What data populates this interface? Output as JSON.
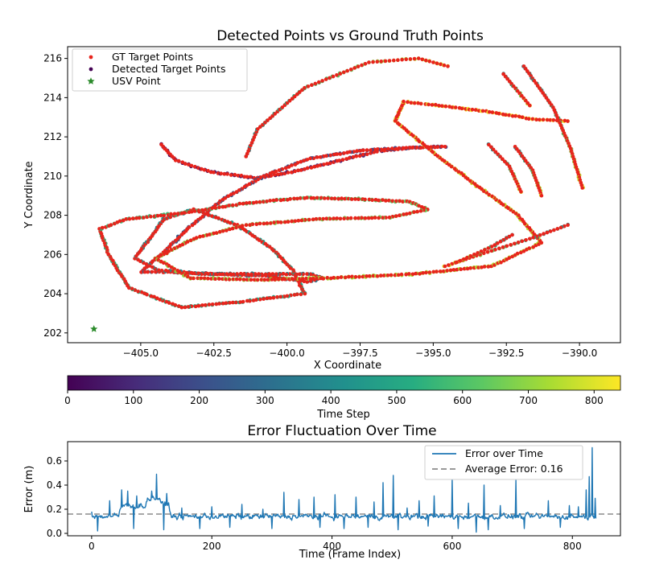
{
  "chart_data": [
    {
      "type": "scatter",
      "title": "Detected Points vs Ground Truth Points",
      "xlabel": "X Coordinate",
      "ylabel": "Y Coordinate",
      "xlim": [
        -407.5,
        -388.6
      ],
      "ylim": [
        201.5,
        216.6
      ],
      "xticks": [
        -405.0,
        -402.5,
        -400.0,
        -397.5,
        -395.0,
        -392.5,
        -390.0
      ],
      "xtick_labels": [
        "−405.0",
        "−402.5",
        "−400.0",
        "−397.5",
        "−395.0",
        "−392.5",
        "−390.0"
      ],
      "yticks": [
        202,
        204,
        206,
        208,
        210,
        212,
        214,
        216
      ],
      "ytick_labels": [
        "202",
        "204",
        "206",
        "208",
        "210",
        "212",
        "214",
        "216"
      ],
      "legend_position": "top-left",
      "legend": [
        {
          "label": "GT Target Points",
          "color": "#e8241c",
          "marker": "dot"
        },
        {
          "label": "Detected Target Points",
          "color": "#440154",
          "marker": "dot"
        },
        {
          "label": "USV Point",
          "color": "#2a8a2a",
          "marker": "star"
        }
      ],
      "usv_point": {
        "x": -406.6,
        "y": 202.2
      },
      "colormap": "viridis",
      "trajectory": [
        {
          "t": 0,
          "x": -404.3,
          "y": 211.6
        },
        {
          "t": 20,
          "x": -403.8,
          "y": 210.8
        },
        {
          "t": 40,
          "x": -402.6,
          "y": 210.2
        },
        {
          "t": 60,
          "x": -401.0,
          "y": 209.9
        },
        {
          "t": 80,
          "x": -399.5,
          "y": 210.3
        },
        {
          "t": 100,
          "x": -398.2,
          "y": 210.8
        },
        {
          "t": 120,
          "x": -396.8,
          "y": 211.3
        },
        {
          "t": 140,
          "x": -395.6,
          "y": 211.45
        },
        {
          "t": 160,
          "x": -394.6,
          "y": 211.5
        },
        {
          "t": 175,
          "x": -395.8,
          "y": 211.45
        },
        {
          "t": 190,
          "x": -397.5,
          "y": 211.3
        },
        {
          "t": 205,
          "x": -399.2,
          "y": 210.9
        },
        {
          "t": 220,
          "x": -400.8,
          "y": 210.0
        },
        {
          "t": 235,
          "x": -402.2,
          "y": 208.8
        },
        {
          "t": 250,
          "x": -403.4,
          "y": 207.3
        },
        {
          "t": 265,
          "x": -404.3,
          "y": 206.0
        },
        {
          "t": 280,
          "x": -405.0,
          "y": 205.1
        },
        {
          "t": 290,
          "x": -404.1,
          "y": 205.1
        },
        {
          "t": 300,
          "x": -402.5,
          "y": 205.0
        },
        {
          "t": 315,
          "x": -400.6,
          "y": 204.9
        },
        {
          "t": 330,
          "x": -399.3,
          "y": 204.6
        },
        {
          "t": 345,
          "x": -398.8,
          "y": 204.8
        },
        {
          "t": 360,
          "x": -399.2,
          "y": 205.0
        },
        {
          "t": 375,
          "x": -400.6,
          "y": 205.0
        },
        {
          "t": 390,
          "x": -402.8,
          "y": 205.0
        },
        {
          "t": 400,
          "x": -404.4,
          "y": 205.2
        },
        {
          "t": 410,
          "x": -405.2,
          "y": 205.8
        },
        {
          "t": 420,
          "x": -404.2,
          "y": 207.8
        },
        {
          "t": 432,
          "x": -403.2,
          "y": 208.3
        },
        {
          "t": 445,
          "x": -401.7,
          "y": 207.5
        },
        {
          "t": 460,
          "x": -400.5,
          "y": 206.3
        },
        {
          "t": 475,
          "x": -399.8,
          "y": 205.2
        },
        {
          "t": 488,
          "x": -399.4,
          "y": 204.0
        },
        {
          "t": 500,
          "x": -401.5,
          "y": 203.6
        },
        {
          "t": 515,
          "x": -403.6,
          "y": 203.3
        },
        {
          "t": 530,
          "x": -405.4,
          "y": 204.3
        },
        {
          "t": 542,
          "x": -406.1,
          "y": 206.0
        },
        {
          "t": 552,
          "x": -406.4,
          "y": 207.3
        },
        {
          "t": 562,
          "x": -405.5,
          "y": 207.8
        },
        {
          "t": 575,
          "x": -403.6,
          "y": 208.1
        },
        {
          "t": 590,
          "x": -401.5,
          "y": 208.6
        },
        {
          "t": 605,
          "x": -399.3,
          "y": 208.9
        },
        {
          "t": 620,
          "x": -397.2,
          "y": 208.8
        },
        {
          "t": 635,
          "x": -395.8,
          "y": 208.7
        },
        {
          "t": 645,
          "x": -395.2,
          "y": 208.3
        },
        {
          "t": 655,
          "x": -396.5,
          "y": 207.9
        },
        {
          "t": 665,
          "x": -399.0,
          "y": 207.8
        },
        {
          "t": 675,
          "x": -401.4,
          "y": 207.5
        },
        {
          "t": 685,
          "x": -403.2,
          "y": 206.8
        },
        {
          "t": 695,
          "x": -404.5,
          "y": 205.8
        },
        {
          "t": 702,
          "x": -403.3,
          "y": 204.8
        },
        {
          "t": 710,
          "x": -401.0,
          "y": 204.7
        },
        {
          "t": 720,
          "x": -398.5,
          "y": 204.8
        },
        {
          "t": 730,
          "x": -395.7,
          "y": 205.0
        },
        {
          "t": 740,
          "x": -393.0,
          "y": 205.4
        },
        {
          "t": 750,
          "x": -391.3,
          "y": 206.6
        },
        {
          "t": 760,
          "x": -392.1,
          "y": 208.0
        },
        {
          "t": 770,
          "x": -393.5,
          "y": 209.5
        },
        {
          "t": 780,
          "x": -395.0,
          "y": 211.2
        },
        {
          "t": 790,
          "x": -396.3,
          "y": 212.8
        },
        {
          "t": 800,
          "x": -396.0,
          "y": 213.8
        },
        {
          "t": 812,
          "x": -394.8,
          "y": 213.6
        },
        {
          "t": 822,
          "x": -393.2,
          "y": 213.3
        },
        {
          "t": 832,
          "x": -391.6,
          "y": 212.9
        },
        {
          "t": 840,
          "x": -390.4,
          "y": 212.8
        }
      ],
      "fragments": [
        [
          {
            "x": -401.4,
            "y": 211.0
          },
          {
            "x": -401.0,
            "y": 212.4
          },
          {
            "x": -399.4,
            "y": 214.5
          },
          {
            "x": -397.2,
            "y": 215.8
          },
          {
            "x": -395.5,
            "y": 216.0
          },
          {
            "x": -394.5,
            "y": 215.6
          }
        ],
        [
          {
            "x": -391.9,
            "y": 215.6
          },
          {
            "x": -390.9,
            "y": 213.5
          },
          {
            "x": -390.3,
            "y": 211.4
          },
          {
            "x": -389.9,
            "y": 209.4
          }
        ],
        [
          {
            "x": -392.6,
            "y": 215.2
          },
          {
            "x": -391.7,
            "y": 213.6
          }
        ],
        [
          {
            "x": -393.1,
            "y": 211.6
          },
          {
            "x": -392.4,
            "y": 210.5
          },
          {
            "x": -392.0,
            "y": 209.2
          }
        ],
        [
          {
            "x": -392.2,
            "y": 211.5
          },
          {
            "x": -391.6,
            "y": 210.3
          },
          {
            "x": -391.3,
            "y": 209.0
          }
        ],
        [
          {
            "x": -390.4,
            "y": 207.5
          },
          {
            "x": -391.7,
            "y": 206.8
          },
          {
            "x": -393.4,
            "y": 206.0
          },
          {
            "x": -394.6,
            "y": 205.4
          }
        ],
        [
          {
            "x": -392.3,
            "y": 207.0
          },
          {
            "x": -393.0,
            "y": 206.4
          },
          {
            "x": -394.2,
            "y": 205.6
          }
        ]
      ]
    },
    {
      "type": "colorbar",
      "label": "Time Step",
      "range": [
        0,
        840
      ],
      "ticks": [
        0,
        100,
        200,
        300,
        400,
        500,
        600,
        700,
        800
      ],
      "tick_labels": [
        "0",
        "100",
        "200",
        "300",
        "400",
        "500",
        "600",
        "700",
        "800"
      ]
    },
    {
      "type": "line",
      "title": "Error Fluctuation Over Time",
      "xlabel": "Time (Frame Index)",
      "ylabel": "Error (m)",
      "xlim": [
        -40,
        880
      ],
      "ylim": [
        -0.02,
        0.76
      ],
      "xticks": [
        0,
        200,
        400,
        600,
        800
      ],
      "xtick_labels": [
        "0",
        "200",
        "400",
        "600",
        "800"
      ],
      "yticks": [
        0.0,
        0.2,
        0.4,
        0.6
      ],
      "ytick_labels": [
        "0.0",
        "0.2",
        "0.4",
        "0.6"
      ],
      "legend_position": "top-right",
      "series": [
        {
          "name": "Error over Time",
          "color": "#1f77b4",
          "style": "solid"
        },
        {
          "name": "Average Error: 0.16",
          "color": "#8c8c8c",
          "style": "dashed",
          "value": 0.16
        }
      ],
      "frames": 840,
      "base_level": 0.14,
      "peaks": [
        {
          "x": 0,
          "y": 0.18
        },
        {
          "x": 30,
          "y": 0.27
        },
        {
          "x": 50,
          "y": 0.36
        },
        {
          "x": 60,
          "y": 0.35
        },
        {
          "x": 75,
          "y": 0.31
        },
        {
          "x": 100,
          "y": 0.35
        },
        {
          "x": 108,
          "y": 0.49
        },
        {
          "x": 125,
          "y": 0.33
        },
        {
          "x": 150,
          "y": 0.21
        },
        {
          "x": 200,
          "y": 0.22
        },
        {
          "x": 250,
          "y": 0.24
        },
        {
          "x": 285,
          "y": 0.2
        },
        {
          "x": 320,
          "y": 0.34
        },
        {
          "x": 345,
          "y": 0.28
        },
        {
          "x": 370,
          "y": 0.3
        },
        {
          "x": 405,
          "y": 0.32
        },
        {
          "x": 440,
          "y": 0.3
        },
        {
          "x": 470,
          "y": 0.26
        },
        {
          "x": 485,
          "y": 0.42
        },
        {
          "x": 502,
          "y": 0.48
        },
        {
          "x": 525,
          "y": 0.21
        },
        {
          "x": 545,
          "y": 0.27
        },
        {
          "x": 570,
          "y": 0.31
        },
        {
          "x": 600,
          "y": 0.45
        },
        {
          "x": 627,
          "y": 0.25
        },
        {
          "x": 653,
          "y": 0.4
        },
        {
          "x": 680,
          "y": 0.23
        },
        {
          "x": 706,
          "y": 0.44
        },
        {
          "x": 760,
          "y": 0.27
        },
        {
          "x": 795,
          "y": 0.23
        },
        {
          "x": 810,
          "y": 0.22
        },
        {
          "x": 823,
          "y": 0.36
        },
        {
          "x": 828,
          "y": 0.47
        },
        {
          "x": 833,
          "y": 0.71
        },
        {
          "x": 838,
          "y": 0.29
        }
      ],
      "troughs": [
        {
          "x": 10,
          "y": 0.02
        },
        {
          "x": 70,
          "y": 0.04
        },
        {
          "x": 120,
          "y": 0.03
        },
        {
          "x": 180,
          "y": 0.04
        },
        {
          "x": 230,
          "y": 0.05
        },
        {
          "x": 300,
          "y": 0.04
        },
        {
          "x": 380,
          "y": 0.05
        },
        {
          "x": 420,
          "y": 0.04
        },
        {
          "x": 460,
          "y": 0.05
        },
        {
          "x": 510,
          "y": 0.03
        },
        {
          "x": 560,
          "y": 0.06
        },
        {
          "x": 610,
          "y": 0.04
        },
        {
          "x": 640,
          "y": 0.01
        },
        {
          "x": 660,
          "y": 0.03
        },
        {
          "x": 720,
          "y": 0.04
        },
        {
          "x": 780,
          "y": 0.05
        }
      ]
    }
  ]
}
